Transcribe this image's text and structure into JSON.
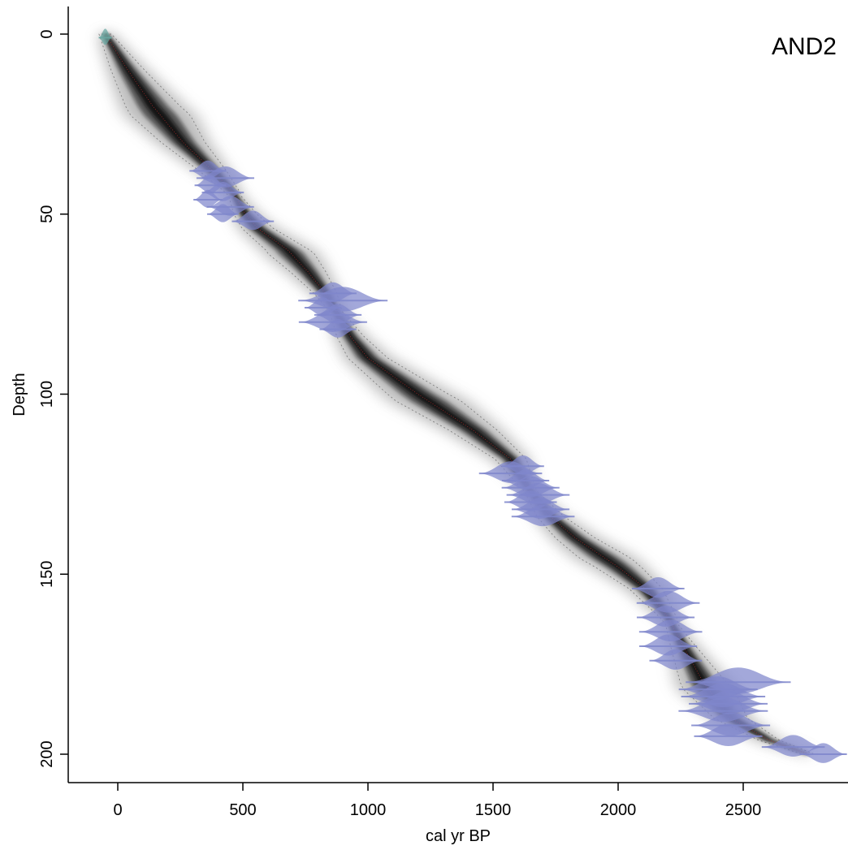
{
  "chart_data": {
    "type": "scatter",
    "title": "AND2",
    "xlabel": "cal yr BP",
    "ylabel": "Depth",
    "xlim": [
      -200,
      2900
    ],
    "ylim": [
      0,
      207
    ],
    "y_inverted": true,
    "xticks": [
      0,
      500,
      1000,
      1500,
      2000,
      2500
    ],
    "xtick_labels": [
      "0",
      "500",
      "1000",
      "1500",
      "2000",
      "2500"
    ],
    "yticks": [
      0,
      50,
      100,
      150,
      200
    ],
    "ytick_labels": [
      "0",
      "50",
      "100",
      "150",
      "200"
    ],
    "grid": false,
    "legend": "none",
    "colors": {
      "age_model": "#111111",
      "age_model_halo": "#9a9a9a",
      "date_distribution": "#7f87cc",
      "surface_date": "#6aa8a2",
      "median_line": "#c03030"
    },
    "age_model": {
      "name": "age-depth model",
      "depth": [
        0,
        10,
        20,
        30,
        38,
        44,
        50,
        54,
        60,
        66,
        72,
        78,
        84,
        90,
        100,
        110,
        118,
        126,
        134,
        140,
        148,
        154,
        162,
        170,
        180,
        190,
        196,
        200
      ],
      "age": [
        -50,
        40,
        140,
        260,
        380,
        460,
        510,
        560,
        680,
        760,
        830,
        880,
        930,
        1000,
        1200,
        1420,
        1570,
        1640,
        1730,
        1830,
        2000,
        2110,
        2200,
        2260,
        2340,
        2450,
        2600,
        2760
      ]
    },
    "dates": [
      {
        "depth": 1,
        "age": -50,
        "spread": 25,
        "type": "surface"
      },
      {
        "depth": 38,
        "age": 360,
        "spread": 70
      },
      {
        "depth": 40,
        "age": 430,
        "spread": 110
      },
      {
        "depth": 42,
        "age": 370,
        "spread": 60
      },
      {
        "depth": 44,
        "age": 420,
        "spread": 80
      },
      {
        "depth": 46,
        "age": 360,
        "spread": 55
      },
      {
        "depth": 48,
        "age": 450,
        "spread": 90
      },
      {
        "depth": 50,
        "age": 420,
        "spread": 60
      },
      {
        "depth": 52,
        "age": 540,
        "spread": 80
      },
      {
        "depth": 72,
        "age": 860,
        "spread": 90
      },
      {
        "depth": 74,
        "age": 900,
        "spread": 170
      },
      {
        "depth": 76,
        "age": 820,
        "spread": 70
      },
      {
        "depth": 78,
        "age": 880,
        "spread": 90
      },
      {
        "depth": 80,
        "age": 860,
        "spread": 130
      },
      {
        "depth": 82,
        "age": 880,
        "spread": 70
      },
      {
        "depth": 120,
        "age": 1620,
        "spread": 80
      },
      {
        "depth": 122,
        "age": 1570,
        "spread": 120
      },
      {
        "depth": 124,
        "age": 1630,
        "spread": 90
      },
      {
        "depth": 126,
        "age": 1650,
        "spread": 110
      },
      {
        "depth": 128,
        "age": 1680,
        "spread": 120
      },
      {
        "depth": 130,
        "age": 1650,
        "spread": 100
      },
      {
        "depth": 132,
        "age": 1690,
        "spread": 110
      },
      {
        "depth": 134,
        "age": 1700,
        "spread": 120
      },
      {
        "depth": 154,
        "age": 2160,
        "spread": 100
      },
      {
        "depth": 158,
        "age": 2200,
        "spread": 120
      },
      {
        "depth": 162,
        "age": 2190,
        "spread": 110
      },
      {
        "depth": 166,
        "age": 2210,
        "spread": 120
      },
      {
        "depth": 170,
        "age": 2200,
        "spread": 110
      },
      {
        "depth": 174,
        "age": 2230,
        "spread": 100
      },
      {
        "depth": 180,
        "age": 2480,
        "spread": 200
      },
      {
        "depth": 182,
        "age": 2400,
        "spread": 150
      },
      {
        "depth": 184,
        "age": 2420,
        "spread": 160
      },
      {
        "depth": 186,
        "age": 2440,
        "spread": 150
      },
      {
        "depth": 188,
        "age": 2420,
        "spread": 170
      },
      {
        "depth": 192,
        "age": 2450,
        "spread": 150
      },
      {
        "depth": 195,
        "age": 2440,
        "spread": 130
      },
      {
        "depth": 198,
        "age": 2700,
        "spread": 120
      },
      {
        "depth": 200,
        "age": 2820,
        "spread": 90
      }
    ]
  }
}
